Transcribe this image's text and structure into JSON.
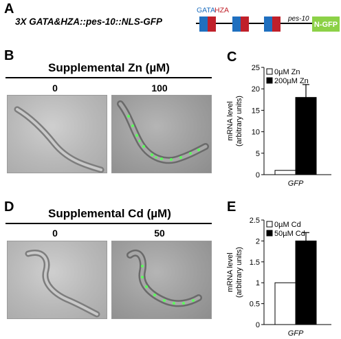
{
  "panels": {
    "a": {
      "letter": "A",
      "construct_label": "3X GATA&HZA::pes-10::NLS-GFP",
      "gata_label": "GATA",
      "hza_label": "HZA",
      "pes10_label": "pes-10",
      "ngfp_label": "N-GFP",
      "colors": {
        "gata": "#1f6fbf",
        "hza": "#c0202a",
        "gfp_box": "#8cd147"
      }
    },
    "b": {
      "letter": "B",
      "title": "Supplemental Zn (µM)",
      "dose_left": "0",
      "dose_right": "100"
    },
    "c": {
      "letter": "C"
    },
    "d": {
      "letter": "D",
      "title": "Supplemental Cd (µM)",
      "dose_left": "0",
      "dose_right": "50"
    },
    "e": {
      "letter": "E"
    }
  },
  "chart_data": [
    {
      "panel": "C",
      "type": "bar",
      "categories": [
        "GFP"
      ],
      "series": [
        {
          "name": "0µM Zn",
          "values": [
            1
          ],
          "error": [
            0
          ],
          "color": "#ffffff"
        },
        {
          "name": "200µM Zn",
          "values": [
            18
          ],
          "error": [
            3
          ],
          "color": "#000000"
        }
      ],
      "ylabel": "mRNA level\n(arbitrary units)",
      "ylabel_line1": "mRNA level",
      "ylabel_line2": "(arbitrary units)",
      "xlabel": "GFP",
      "ylim": [
        0,
        25
      ],
      "yticks": [
        "0",
        "5",
        "10",
        "15",
        "20",
        "25"
      ],
      "grid": false,
      "legend": "top-left"
    },
    {
      "panel": "E",
      "type": "bar",
      "categories": [
        "GFP"
      ],
      "series": [
        {
          "name": "0µM Cd",
          "values": [
            1
          ],
          "error": [
            0
          ],
          "color": "#ffffff"
        },
        {
          "name": "50µM Cd",
          "values": [
            2
          ],
          "error": [
            0.2
          ],
          "color": "#000000"
        }
      ],
      "ylabel": "mRNA level\n(arbitrary units)",
      "ylabel_line1": "mRNA level",
      "ylabel_line2": "(arbitrary units)",
      "xlabel": "GFP",
      "ylim": [
        0,
        2.5
      ],
      "yticks": [
        "0",
        "0.5",
        "1",
        "1.5",
        "2",
        "2.5"
      ],
      "grid": false,
      "legend": "top-left"
    }
  ]
}
